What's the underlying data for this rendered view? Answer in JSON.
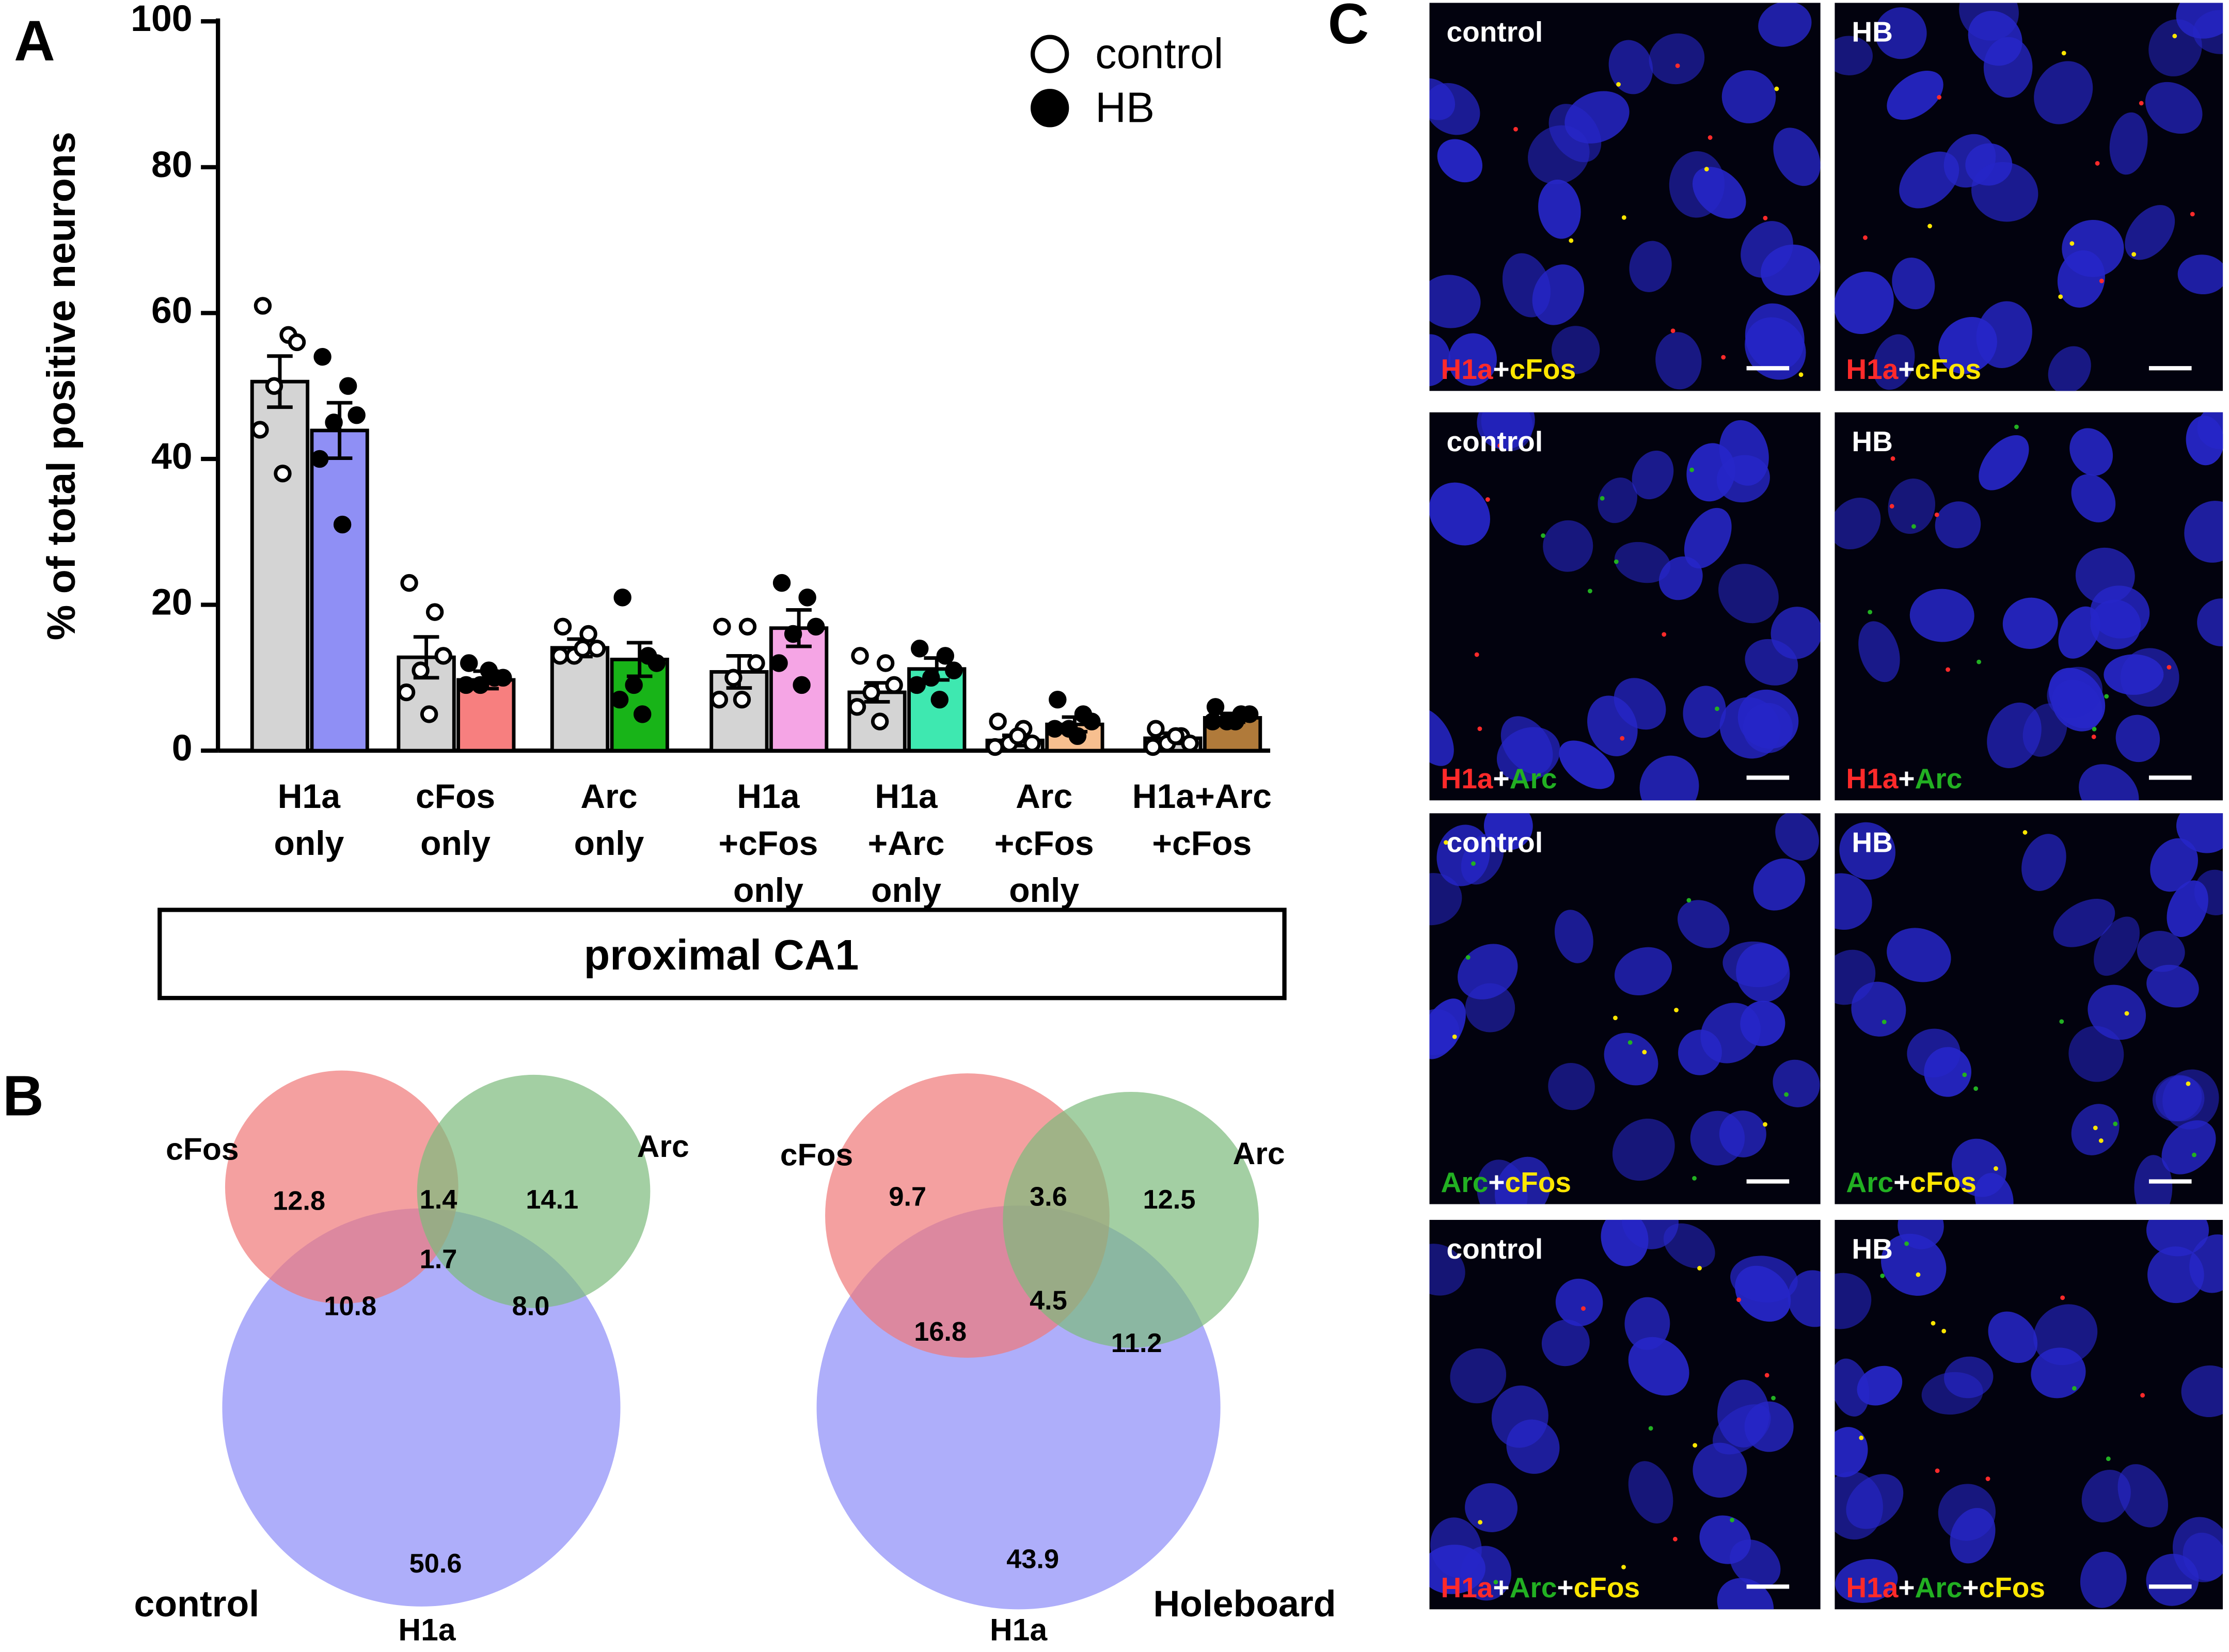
{
  "panel_labels": [
    "A",
    "B",
    "C"
  ],
  "chart_data": [
    {
      "type": "bar",
      "ylabel": "% of total positive neurons",
      "categories": [
        [
          "H1a",
          "only"
        ],
        [
          "cFos",
          "only"
        ],
        [
          "Arc",
          "only"
        ],
        [
          "H1a",
          "+cFos",
          "only"
        ],
        [
          "H1a",
          "+Arc",
          "only"
        ],
        [
          "Arc",
          "+cFos",
          "only"
        ],
        [
          "H1a+Arc",
          "+cFos"
        ]
      ],
      "ylim": [
        0,
        100
      ],
      "yticks": [
        0,
        20,
        40,
        60,
        80,
        100
      ],
      "legend": "upper right",
      "group_label": "proximal CA1",
      "series": [
        {
          "name": "control",
          "marker": "open",
          "color": "#d4d4d4",
          "values": [
            50.6,
            12.8,
            14.1,
            10.8,
            8.0,
            1.4,
            1.7
          ],
          "errors": [
            3.5,
            2.8,
            1.2,
            2.2,
            1.3,
            0.7,
            0.7
          ],
          "points": [
            [
              61,
              57,
              56,
              50,
              44,
              38
            ],
            [
              23,
              19,
              13,
              11,
              8,
              5
            ],
            [
              17,
              16,
              14,
              13,
              13,
              14
            ],
            [
              17,
              17,
              12,
              10,
              7,
              7
            ],
            [
              13,
              12,
              9,
              8,
              6,
              4
            ],
            [
              4,
              3,
              1,
              1,
              0.5,
              2
            ],
            [
              3,
              2,
              1,
              1,
              0.5,
              2
            ]
          ]
        },
        {
          "name": "HB",
          "marker": "filled",
          "colors": [
            "#8f8ff5",
            "#f77f7f",
            "#18b418",
            "#f5a5e5",
            "#3ee8b0",
            "#f7bf8f",
            "#b07a3a"
          ],
          "values": [
            43.9,
            9.7,
            12.5,
            16.8,
            11.2,
            3.6,
            4.5
          ],
          "errors": [
            3.8,
            1.2,
            2.3,
            2.5,
            1.5,
            1.0,
            0.6
          ],
          "points": [
            [
              54,
              50,
              46,
              45,
              40,
              31
            ],
            [
              12,
              10,
              10,
              9,
              9,
              11
            ],
            [
              21,
              13,
              12,
              9,
              7,
              5
            ],
            [
              23,
              21,
              17,
              16,
              12,
              9
            ],
            [
              14,
              13,
              11,
              10,
              9,
              7
            ],
            [
              7,
              5,
              4,
              3,
              3,
              2
            ],
            [
              6,
              5,
              5,
              4,
              4,
              4
            ]
          ]
        }
      ]
    },
    {
      "type": "venn",
      "group": "control",
      "sets": [
        "cFos",
        "Arc",
        "H1a"
      ],
      "set_colors": [
        "#f07878",
        "#7cba7c",
        "#8c8cf8"
      ],
      "values": [
        12.8,
        14.1,
        1.4,
        1.7,
        10.8,
        8.0,
        50.6
      ],
      "value_labels": [
        "12.8",
        "14.1",
        "1.4",
        "1.7",
        "10.8",
        "8.0",
        "50.6"
      ]
    },
    {
      "type": "venn",
      "group": "Holeboard",
      "sets": [
        "cFos",
        "Arc",
        "H1a"
      ],
      "set_colors": [
        "#f07878",
        "#7cba7c",
        "#8c8cf8"
      ],
      "values": [
        9.7,
        12.5,
        3.6,
        4.5,
        16.8,
        11.2,
        43.9
      ],
      "value_labels": [
        "9.7",
        "12.5",
        "3.6",
        "4.5",
        "16.8",
        "11.2",
        "43.9"
      ]
    }
  ],
  "micrographs": [
    {
      "condition": "control",
      "stain": [
        {
          "text": "H1a",
          "color": "#ff2a2a"
        },
        {
          "text": "+",
          "color": "#ffffff"
        },
        {
          "text": "cFos",
          "color": "#ffe600"
        }
      ]
    },
    {
      "condition": "HB",
      "stain": [
        {
          "text": "H1a",
          "color": "#ff2a2a"
        },
        {
          "text": "+",
          "color": "#ffffff"
        },
        {
          "text": "cFos",
          "color": "#ffe600"
        }
      ]
    },
    {
      "condition": "control",
      "stain": [
        {
          "text": "H1a",
          "color": "#ff2a2a"
        },
        {
          "text": "+",
          "color": "#ffffff"
        },
        {
          "text": "Arc",
          "color": "#22b022"
        }
      ]
    },
    {
      "condition": "HB",
      "stain": [
        {
          "text": "H1a",
          "color": "#ff2a2a"
        },
        {
          "text": "+",
          "color": "#ffffff"
        },
        {
          "text": "Arc",
          "color": "#22b022"
        }
      ]
    },
    {
      "condition": "control",
      "stain": [
        {
          "text": "Arc",
          "color": "#22b022"
        },
        {
          "text": "+",
          "color": "#ffffff"
        },
        {
          "text": "cFos",
          "color": "#ffe600"
        }
      ]
    },
    {
      "condition": "HB",
      "stain": [
        {
          "text": "Arc",
          "color": "#22b022"
        },
        {
          "text": "+",
          "color": "#ffffff"
        },
        {
          "text": "cFos",
          "color": "#ffe600"
        }
      ]
    },
    {
      "condition": "control",
      "stain": [
        {
          "text": "H1a",
          "color": "#ff2a2a"
        },
        {
          "text": "+",
          "color": "#ffffff"
        },
        {
          "text": "Arc",
          "color": "#22b022"
        },
        {
          "text": "+",
          "color": "#ffffff"
        },
        {
          "text": "cFos",
          "color": "#ffe600"
        }
      ]
    },
    {
      "condition": "HB",
      "stain": [
        {
          "text": "H1a",
          "color": "#ff2a2a"
        },
        {
          "text": "+",
          "color": "#ffffff"
        },
        {
          "text": "Arc",
          "color": "#22b022"
        },
        {
          "text": "+",
          "color": "#ffffff"
        },
        {
          "text": "cFos",
          "color": "#ffe600"
        }
      ]
    }
  ]
}
